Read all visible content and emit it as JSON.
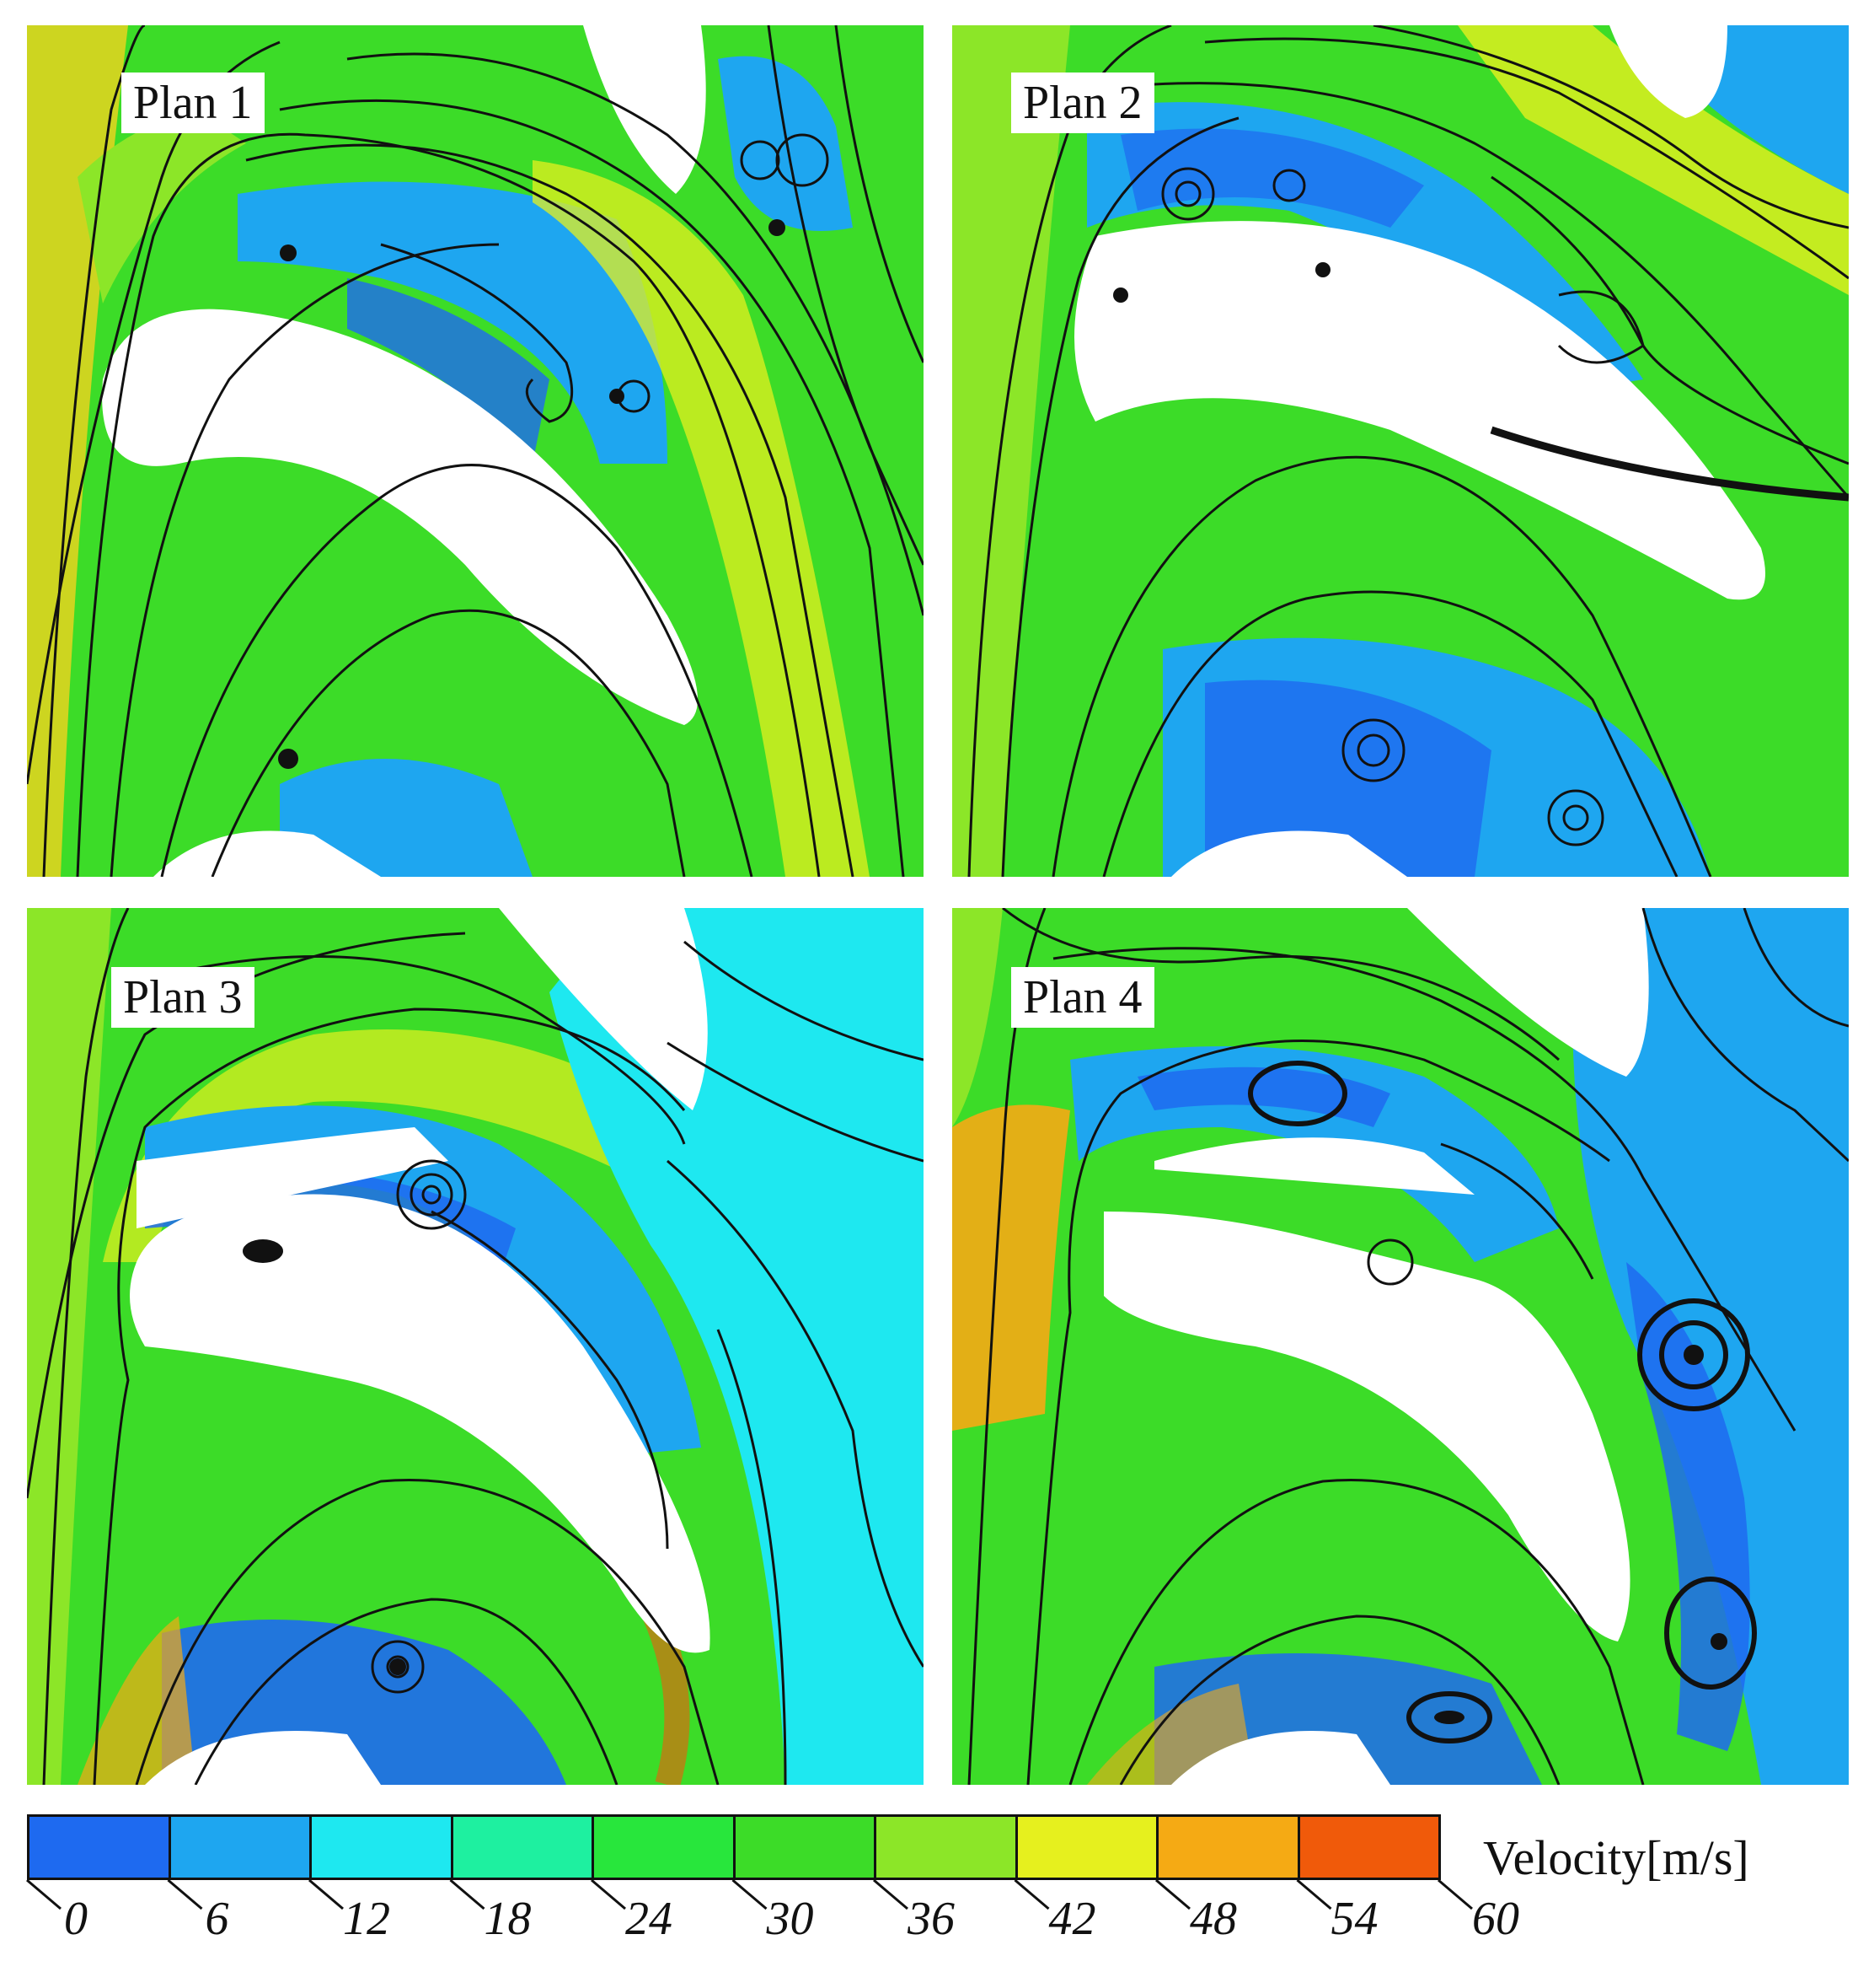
{
  "panels": [
    {
      "label": "Plan 1"
    },
    {
      "label": "Plan 2"
    },
    {
      "label": "Plan 3"
    },
    {
      "label": "Plan 4"
    }
  ],
  "colorbar": {
    "title": "Velocity[m/s]",
    "ticks": [
      "0",
      "6",
      "12",
      "18",
      "24",
      "30",
      "36",
      "42",
      "48",
      "54",
      "60"
    ],
    "colors": [
      "#1e6af0",
      "#1ea6f0",
      "#1ee8f0",
      "#1ef0a0",
      "#28e63c",
      "#3cdc28",
      "#8ce628",
      "#e6f01e",
      "#f5aa14",
      "#f05a0a"
    ]
  }
}
